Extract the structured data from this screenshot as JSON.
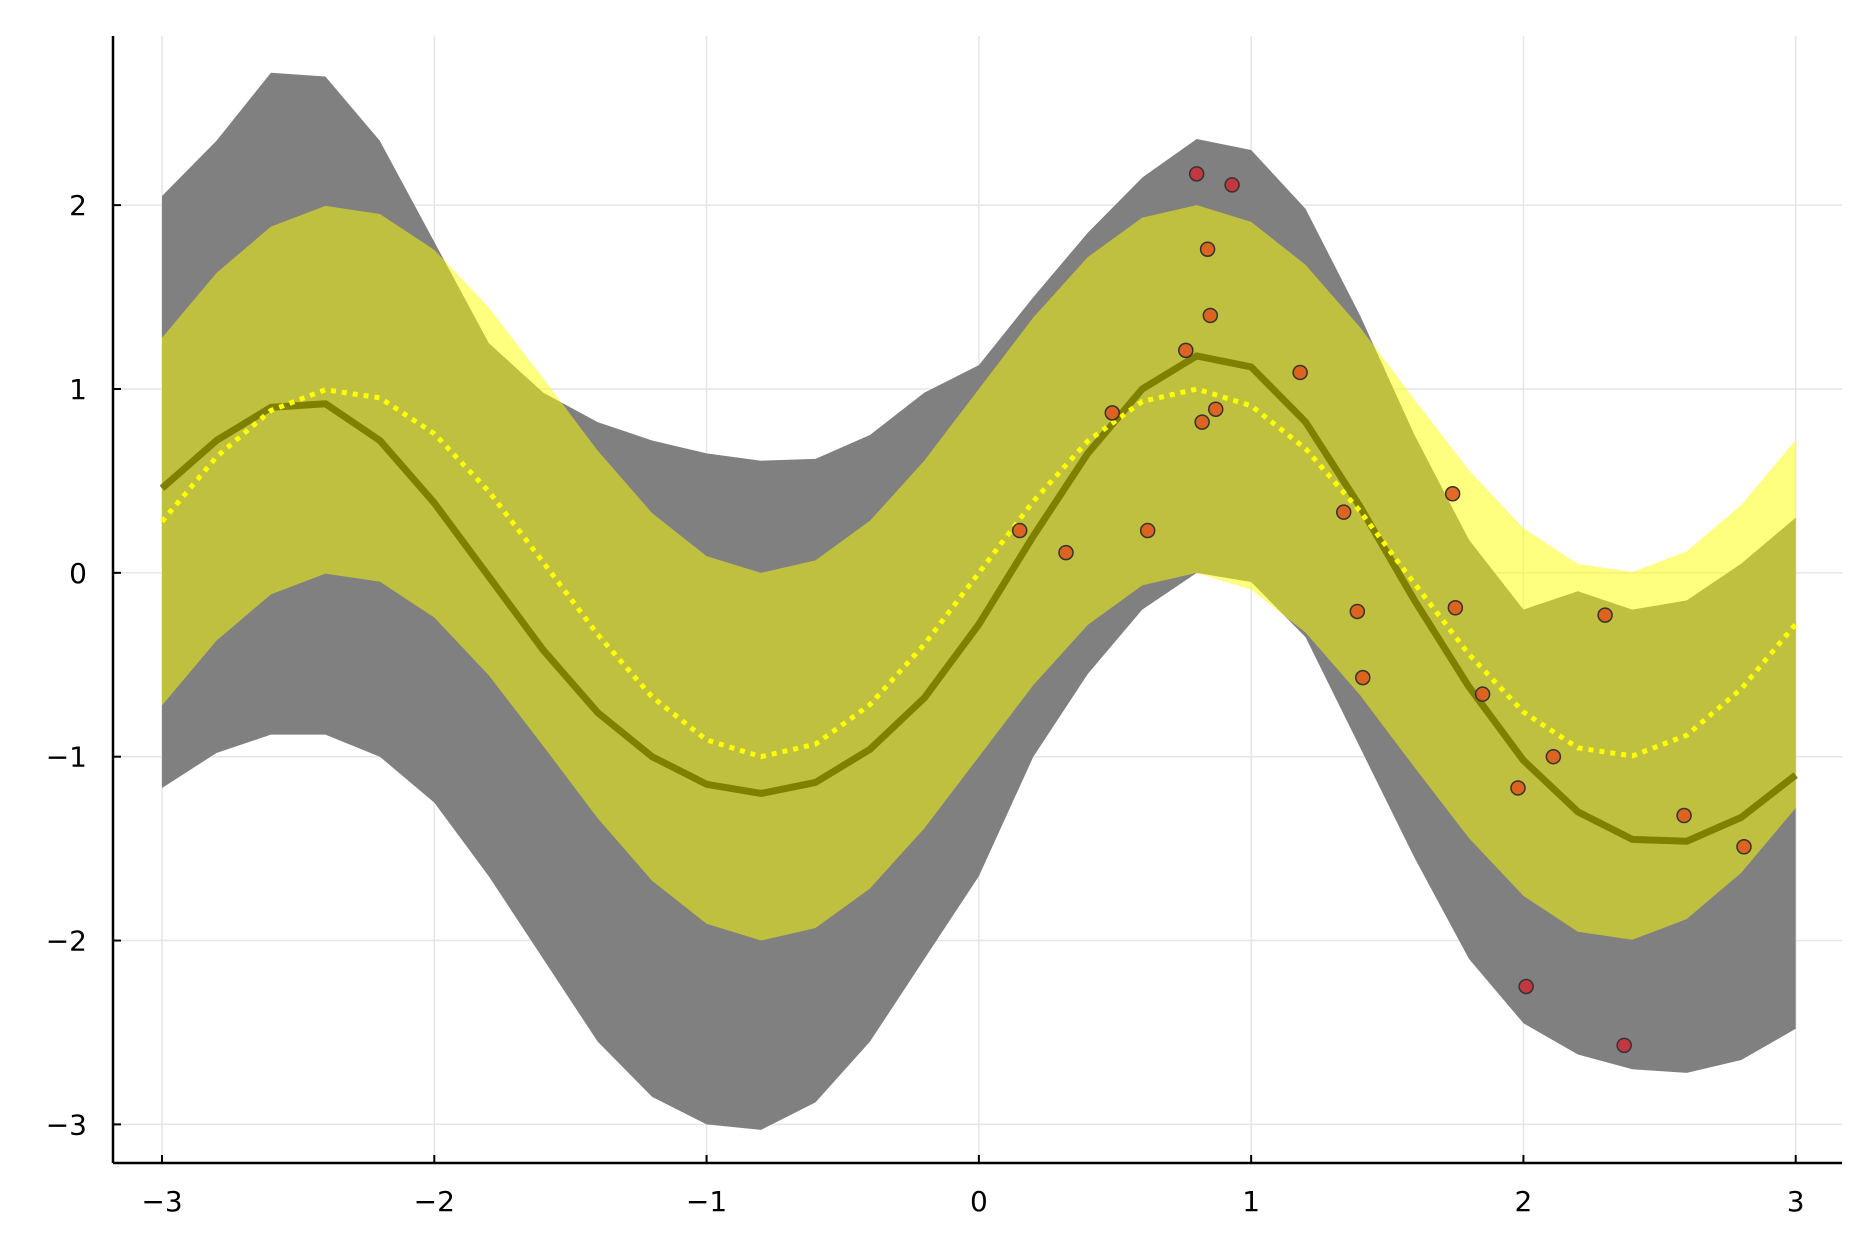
{
  "chart_data": {
    "type": "line",
    "x": [
      -3,
      -2.8,
      -2.6,
      -2.4,
      -2.2,
      -2.0,
      -1.8,
      -1.6,
      -1.4,
      -1.2,
      -1.0,
      -0.8,
      -0.6,
      -0.4,
      -0.2,
      0,
      0.2,
      0.4,
      0.6,
      0.8,
      1.0,
      1.2,
      1.4,
      1.6,
      1.8,
      2.0,
      2.2,
      2.4,
      2.6,
      2.8,
      3.0
    ],
    "bands": [
      {
        "color": "#808080",
        "opacity": 1,
        "upper": [
          2.05,
          2.35,
          2.72,
          2.7,
          2.35,
          1.8,
          1.25,
          0.98,
          0.82,
          0.72,
          0.65,
          0.61,
          0.62,
          0.75,
          0.98,
          1.13,
          1.5,
          1.85,
          2.15,
          2.36,
          2.3,
          1.98,
          1.4,
          0.75,
          0.18,
          -0.2,
          -0.1,
          -0.2,
          -0.15,
          0.05,
          0.3
        ],
        "lower": [
          -1.17,
          -0.98,
          -0.88,
          -0.88,
          -1.0,
          -1.25,
          -1.65,
          -2.1,
          -2.55,
          -2.85,
          -3.0,
          -3.03,
          -2.88,
          -2.55,
          -2.1,
          -1.65,
          -1.0,
          -0.55,
          -0.2,
          0.0,
          -0.05,
          -0.35,
          -0.95,
          -1.55,
          -2.1,
          -2.45,
          -2.62,
          -2.7,
          -2.72,
          -2.65,
          -2.48
        ]
      },
      {
        "color": "#ffff00",
        "opacity": 0.5,
        "upper": [
          1.279,
          1.631,
          1.883,
          1.996,
          1.952,
          1.757,
          1.443,
          1.058,
          0.665,
          0.325,
          0.091,
          0.0,
          0.068,
          0.283,
          0.611,
          1.0,
          1.389,
          1.717,
          1.932,
          2.0,
          1.909,
          1.675,
          1.335,
          0.942,
          0.557,
          0.243,
          0.048,
          0.004,
          0.117,
          0.369,
          0.721
        ],
        "lower": [
          -0.721,
          -0.369,
          -0.117,
          -0.004,
          -0.048,
          -0.243,
          -0.557,
          -0.942,
          -1.335,
          -1.675,
          -1.909,
          -2.0,
          -1.932,
          -1.717,
          -1.389,
          -1.0,
          -0.611,
          -0.283,
          -0.068,
          0.0,
          -0.091,
          -0.325,
          -0.665,
          -1.058,
          -1.443,
          -1.757,
          -1.952,
          -1.996,
          -1.883,
          -1.631,
          -1.279
        ]
      }
    ],
    "series": [
      {
        "color": "#7f7f00",
        "style": "solid",
        "width": 7,
        "values": [
          0.46,
          0.72,
          0.9,
          0.92,
          0.72,
          0.38,
          -0.02,
          -0.42,
          -0.76,
          -1.0,
          -1.15,
          -1.2,
          -1.14,
          -0.96,
          -0.68,
          -0.28,
          0.2,
          0.65,
          1.0,
          1.18,
          1.12,
          0.82,
          0.36,
          -0.15,
          -0.62,
          -1.02,
          -1.3,
          -1.45,
          -1.46,
          -1.33,
          -1.1
        ]
      },
      {
        "color": "#ffff00",
        "style": "dotted",
        "width": 5,
        "values": [
          0.279,
          0.631,
          0.883,
          0.996,
          0.952,
          0.757,
          0.443,
          0.058,
          -0.335,
          -0.675,
          -0.909,
          -1.0,
          -0.932,
          -0.717,
          -0.389,
          0,
          0.389,
          0.717,
          0.932,
          1.0,
          0.909,
          0.675,
          0.335,
          -0.058,
          -0.443,
          -0.757,
          -0.952,
          -0.996,
          -0.883,
          -0.631,
          -0.279
        ]
      }
    ],
    "points": {
      "x": [
        0.15,
        0.32,
        0.49,
        0.62,
        0.76,
        0.8,
        0.82,
        0.84,
        0.85,
        0.87,
        0.93,
        1.18,
        1.34,
        1.39,
        1.41,
        1.74,
        1.75,
        1.85,
        1.98,
        2.01,
        2.11,
        2.3,
        2.37,
        2.59,
        2.81
      ],
      "y": [
        0.23,
        0.11,
        0.87,
        0.23,
        1.21,
        2.17,
        0.82,
        1.76,
        1.4,
        0.89,
        2.11,
        1.09,
        0.33,
        -0.21,
        -0.57,
        0.43,
        -0.19,
        -0.66,
        -1.17,
        -2.25,
        -1.0,
        -0.23,
        -2.57,
        -1.32,
        -1.49
      ],
      "colors": [
        "#e05a1c",
        "#e05a1c",
        "#e05a1c",
        "#e05a1c",
        "#e05a1c",
        "#c8303a",
        "#e05a1c",
        "#e05a1c",
        "#e05a1c",
        "#e05a1c",
        "#c8303a",
        "#e05a1c",
        "#e05a1c",
        "#e05a1c",
        "#e05a1c",
        "#e05a1c",
        "#e05a1c",
        "#e05a1c",
        "#e05a1c",
        "#c8303a",
        "#e05a1c",
        "#e05a1c",
        "#c8303a",
        "#e05a1c",
        "#e05a1c"
      ]
    },
    "xlim": [
      -3.18,
      3.17
    ],
    "ylim": [
      -3.21,
      2.92
    ],
    "xticks": [
      {
        "value": -3,
        "label": "−3"
      },
      {
        "value": -2,
        "label": "−2"
      },
      {
        "value": -1,
        "label": "−1"
      },
      0,
      1,
      2,
      3
    ],
    "yticks": [
      {
        "value": -3,
        "label": "−3"
      },
      {
        "value": -2,
        "label": "−2"
      },
      {
        "value": -1,
        "label": "−1"
      },
      0,
      1,
      2
    ],
    "grid": true
  }
}
